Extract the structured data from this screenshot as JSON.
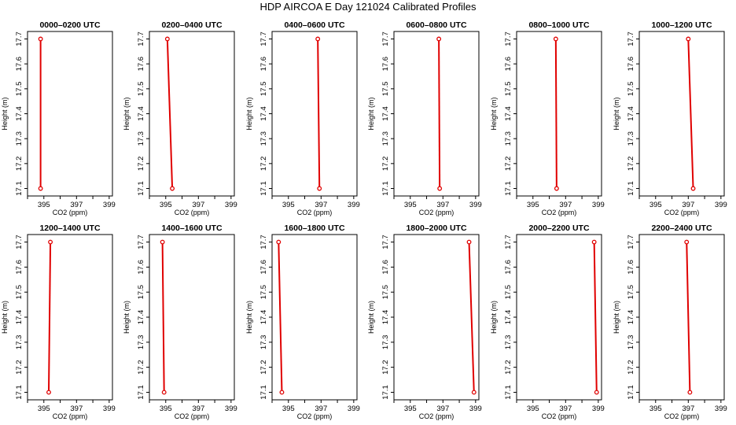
{
  "title": "HDP AIRCOA E  Day 121024  Calibrated Profiles",
  "chart_data": [
    {
      "type": "line",
      "title": "0000–0200 UTC",
      "xlabel": "CO2 (ppm)",
      "ylabel": "Height (m)",
      "xlim": [
        394,
        399.2
      ],
      "ylim": [
        17.07,
        17.73
      ],
      "x_ticks": [
        "395",
        "397",
        "399"
      ],
      "y_ticks": [
        "17.1",
        "17.2",
        "17.3",
        "17.4",
        "17.5",
        "17.6",
        "17.7"
      ],
      "series": [
        {
          "x": [
            394.8,
            394.8
          ],
          "y": [
            17.1,
            17.7
          ]
        }
      ],
      "grid": false
    },
    {
      "type": "line",
      "title": "0200–0400 UTC",
      "xlabel": "CO2 (ppm)",
      "ylabel": "Height (m)",
      "xlim": [
        394,
        399.2
      ],
      "ylim": [
        17.07,
        17.73
      ],
      "x_ticks": [
        "395",
        "397",
        "399"
      ],
      "y_ticks": [
        "17.1",
        "17.2",
        "17.3",
        "17.4",
        "17.5",
        "17.6",
        "17.7"
      ],
      "series": [
        {
          "x": [
            395.4,
            395.1
          ],
          "y": [
            17.1,
            17.7
          ]
        }
      ],
      "grid": false
    },
    {
      "type": "line",
      "title": "0400–0600 UTC",
      "xlabel": "CO2 (ppm)",
      "ylabel": "Height (m)",
      "xlim": [
        394,
        399.2
      ],
      "ylim": [
        17.07,
        17.73
      ],
      "x_ticks": [
        "395",
        "397",
        "399"
      ],
      "y_ticks": [
        "17.1",
        "17.2",
        "17.3",
        "17.4",
        "17.5",
        "17.6",
        "17.7"
      ],
      "series": [
        {
          "x": [
            396.9,
            396.8
          ],
          "y": [
            17.1,
            17.7
          ]
        }
      ],
      "grid": false
    },
    {
      "type": "line",
      "title": "0600–0800 UTC",
      "xlabel": "CO2 (ppm)",
      "ylabel": "Height (m)",
      "xlim": [
        394,
        399.2
      ],
      "ylim": [
        17.07,
        17.73
      ],
      "x_ticks": [
        "395",
        "397",
        "399"
      ],
      "y_ticks": [
        "17.1",
        "17.2",
        "17.3",
        "17.4",
        "17.5",
        "17.6",
        "17.7"
      ],
      "series": [
        {
          "x": [
            396.8,
            396.75
          ],
          "y": [
            17.1,
            17.7
          ]
        }
      ],
      "grid": false
    },
    {
      "type": "line",
      "title": "0800–1000 UTC",
      "xlabel": "CO2 (ppm)",
      "ylabel": "Height (m)",
      "xlim": [
        394,
        399.2
      ],
      "ylim": [
        17.07,
        17.73
      ],
      "x_ticks": [
        "395",
        "397",
        "399"
      ],
      "y_ticks": [
        "17.1",
        "17.2",
        "17.3",
        "17.4",
        "17.5",
        "17.6",
        "17.7"
      ],
      "series": [
        {
          "x": [
            396.45,
            396.4
          ],
          "y": [
            17.1,
            17.7
          ]
        }
      ],
      "grid": false
    },
    {
      "type": "line",
      "title": "1000–1200 UTC",
      "xlabel": "CO2 (ppm)",
      "ylabel": "Height (m)",
      "xlim": [
        394,
        399.2
      ],
      "ylim": [
        17.07,
        17.73
      ],
      "x_ticks": [
        "395",
        "397",
        "399"
      ],
      "y_ticks": [
        "17.1",
        "17.2",
        "17.3",
        "17.4",
        "17.5",
        "17.6",
        "17.7"
      ],
      "series": [
        {
          "x": [
            397.3,
            397.0
          ],
          "y": [
            17.1,
            17.7
          ]
        }
      ],
      "grid": false
    },
    {
      "type": "line",
      "title": "1200–1400 UTC",
      "xlabel": "CO2 (ppm)",
      "ylabel": "Height (m)",
      "xlim": [
        394,
        399.2
      ],
      "ylim": [
        17.07,
        17.73
      ],
      "x_ticks": [
        "395",
        "397",
        "399"
      ],
      "y_ticks": [
        "17.1",
        "17.2",
        "17.3",
        "17.4",
        "17.5",
        "17.6",
        "17.7"
      ],
      "series": [
        {
          "x": [
            395.3,
            395.4
          ],
          "y": [
            17.1,
            17.7
          ]
        }
      ],
      "grid": false
    },
    {
      "type": "line",
      "title": "1400–1600 UTC",
      "xlabel": "CO2 (ppm)",
      "ylabel": "Height (m)",
      "xlim": [
        394,
        399.2
      ],
      "ylim": [
        17.07,
        17.73
      ],
      "x_ticks": [
        "395",
        "397",
        "399"
      ],
      "y_ticks": [
        "17.1",
        "17.2",
        "17.3",
        "17.4",
        "17.5",
        "17.6",
        "17.7"
      ],
      "series": [
        {
          "x": [
            394.9,
            394.8
          ],
          "y": [
            17.1,
            17.7
          ]
        }
      ],
      "grid": false
    },
    {
      "type": "line",
      "title": "1600–1800 UTC",
      "xlabel": "CO2 (ppm)",
      "ylabel": "Height (m)",
      "xlim": [
        394,
        399.2
      ],
      "ylim": [
        17.07,
        17.73
      ],
      "x_ticks": [
        "395",
        "397",
        "399"
      ],
      "y_ticks": [
        "17.1",
        "17.2",
        "17.3",
        "17.4",
        "17.5",
        "17.6",
        "17.7"
      ],
      "series": [
        {
          "x": [
            394.6,
            394.4
          ],
          "y": [
            17.1,
            17.7
          ]
        }
      ],
      "grid": false
    },
    {
      "type": "line",
      "title": "1800–2000 UTC",
      "xlabel": "CO2 (ppm)",
      "ylabel": "Height (m)",
      "xlim": [
        394,
        399.2
      ],
      "ylim": [
        17.07,
        17.73
      ],
      "x_ticks": [
        "395",
        "397",
        "399"
      ],
      "y_ticks": [
        "17.1",
        "17.2",
        "17.3",
        "17.4",
        "17.5",
        "17.6",
        "17.7"
      ],
      "series": [
        {
          "x": [
            398.9,
            398.6
          ],
          "y": [
            17.1,
            17.7
          ]
        }
      ],
      "grid": false
    },
    {
      "type": "line",
      "title": "2000–2200 UTC",
      "xlabel": "CO2 (ppm)",
      "ylabel": "Height (m)",
      "xlim": [
        394,
        399.2
      ],
      "ylim": [
        17.07,
        17.73
      ],
      "x_ticks": [
        "395",
        "397",
        "399"
      ],
      "y_ticks": [
        "17.1",
        "17.2",
        "17.3",
        "17.4",
        "17.5",
        "17.6",
        "17.7"
      ],
      "series": [
        {
          "x": [
            398.9,
            398.75
          ],
          "y": [
            17.1,
            17.7
          ]
        }
      ],
      "grid": false
    },
    {
      "type": "line",
      "title": "2200–2400 UTC",
      "xlabel": "CO2 (ppm)",
      "ylabel": "Height (m)",
      "xlim": [
        394,
        399.2
      ],
      "ylim": [
        17.07,
        17.73
      ],
      "x_ticks": [
        "395",
        "397",
        "399"
      ],
      "y_ticks": [
        "17.1",
        "17.2",
        "17.3",
        "17.4",
        "17.5",
        "17.6",
        "17.7"
      ],
      "series": [
        {
          "x": [
            397.1,
            396.9
          ],
          "y": [
            17.1,
            17.7
          ]
        }
      ],
      "grid": false
    }
  ],
  "colors": {
    "line": "#e00000",
    "marker": "#e00000",
    "axis": "#000000"
  }
}
